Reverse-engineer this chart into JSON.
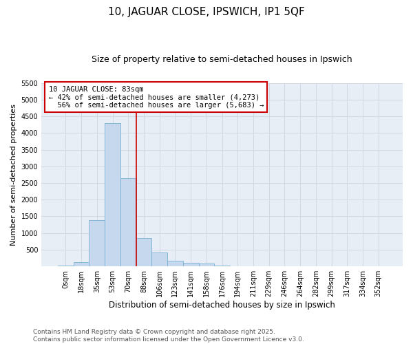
{
  "title": "10, JAGUAR CLOSE, IPSWICH, IP1 5QF",
  "subtitle": "Size of property relative to semi-detached houses in Ipswich",
  "xlabel": "Distribution of semi-detached houses by size in Ipswich",
  "ylabel": "Number of semi-detached properties",
  "categories": [
    "0sqm",
    "18sqm",
    "35sqm",
    "53sqm",
    "70sqm",
    "88sqm",
    "106sqm",
    "123sqm",
    "141sqm",
    "158sqm",
    "176sqm",
    "194sqm",
    "211sqm",
    "229sqm",
    "246sqm",
    "264sqm",
    "282sqm",
    "299sqm",
    "317sqm",
    "334sqm",
    "352sqm"
  ],
  "values": [
    15,
    130,
    1380,
    4300,
    2650,
    840,
    420,
    170,
    115,
    80,
    20,
    10,
    5,
    0,
    0,
    0,
    0,
    0,
    0,
    0,
    0
  ],
  "bar_color": "#c5d8ed",
  "bar_edge_color": "#7aafd4",
  "vline_x": 4.5,
  "vline_color": "#cc0000",
  "annotation_text": "10 JAGUAR CLOSE: 83sqm\n← 42% of semi-detached houses are smaller (4,273)\n  56% of semi-detached houses are larger (5,683) →",
  "annotation_box_color": "#ffffff",
  "annotation_box_edge_color": "#cc0000",
  "ylim": [
    0,
    5500
  ],
  "yticks": [
    0,
    500,
    1000,
    1500,
    2000,
    2500,
    3000,
    3500,
    4000,
    4500,
    5000,
    5500
  ],
  "grid_color": "#d0d8e4",
  "bg_color": "#e8eef5",
  "footer_text": "Contains HM Land Registry data © Crown copyright and database right 2025.\nContains public sector information licensed under the Open Government Licence v3.0.",
  "title_fontsize": 11,
  "subtitle_fontsize": 9,
  "xlabel_fontsize": 8.5,
  "ylabel_fontsize": 8,
  "tick_fontsize": 7,
  "annotation_fontsize": 7.5,
  "footer_fontsize": 6.5
}
